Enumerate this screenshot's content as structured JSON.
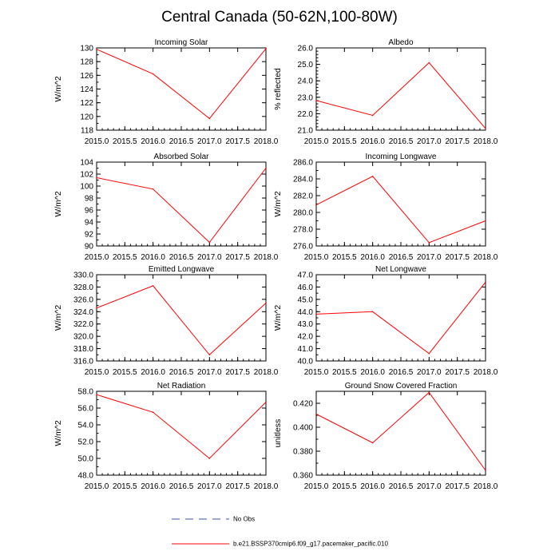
{
  "title": "Central Canada (50-62N,100-80W)",
  "colors": {
    "model": "#ff0000",
    "obs": "#3355aa",
    "axis": "#000000"
  },
  "legend": {
    "obs_label": "No Obs",
    "model_label": "b.e21.BSSP370cmip6.f09_g17.pacemaker_pacific.010"
  },
  "chart_data": [
    {
      "type": "line",
      "title": "Incoming Solar",
      "ylabel": "W/m^2",
      "x": [
        2015,
        2016,
        2017,
        2018
      ],
      "values": [
        129.8,
        126.2,
        119.7,
        129.9
      ],
      "xlim": [
        2015,
        2018
      ],
      "ylim": [
        118,
        130
      ],
      "xticks": [
        "2015.0",
        "2015.5",
        "2016.0",
        "2016.5",
        "2017.0",
        "2017.5",
        "2018.0"
      ],
      "yticks": [
        "118",
        "120",
        "122",
        "124",
        "126",
        "128",
        "130"
      ],
      "yminor": 1
    },
    {
      "type": "line",
      "title": "Albedo",
      "ylabel": "% reflected",
      "x": [
        2015,
        2016,
        2017,
        2018
      ],
      "values": [
        22.8,
        21.9,
        25.1,
        21.1
      ],
      "xlim": [
        2015,
        2018
      ],
      "ylim": [
        21,
        26
      ],
      "xticks": [
        "2015.0",
        "2015.5",
        "2016.0",
        "2016.5",
        "2017.0",
        "2017.5",
        "2018.0"
      ],
      "yticks": [
        "21.0",
        "22.0",
        "23.0",
        "24.0",
        "25.0",
        "26.0"
      ],
      "yminor": 4
    },
    {
      "type": "line",
      "title": "Absorbed Solar",
      "ylabel": "W/m^2",
      "x": [
        2015,
        2016,
        2017,
        2018
      ],
      "values": [
        101.4,
        99.5,
        90.6,
        103.0
      ],
      "xlim": [
        2015,
        2018
      ],
      "ylim": [
        90,
        104
      ],
      "xticks": [
        "2015.0",
        "2015.5",
        "2016.0",
        "2016.5",
        "2017.0",
        "2017.5",
        "2018.0"
      ],
      "yticks": [
        "90",
        "92",
        "94",
        "96",
        "98",
        "100",
        "102",
        "104"
      ],
      "yminor": 1
    },
    {
      "type": "line",
      "title": "Incoming Longwave",
      "ylabel": "W/m^2",
      "x": [
        2015,
        2016,
        2017,
        2018
      ],
      "values": [
        280.9,
        284.3,
        276.4,
        279.0
      ],
      "xlim": [
        2015,
        2018
      ],
      "ylim": [
        276,
        286
      ],
      "xticks": [
        "2015.0",
        "2015.5",
        "2016.0",
        "2016.5",
        "2017.0",
        "2017.5",
        "2018.0"
      ],
      "yticks": [
        "276.0",
        "278.0",
        "280.0",
        "282.0",
        "284.0",
        "286.0"
      ],
      "yminor": 1
    },
    {
      "type": "line",
      "title": "Emitted Longwave",
      "ylabel": "W/m^2",
      "x": [
        2015,
        2016,
        2017,
        2018
      ],
      "values": [
        324.6,
        328.2,
        317.0,
        325.4
      ],
      "xlim": [
        2015,
        2018
      ],
      "ylim": [
        316,
        330
      ],
      "xticks": [
        "2015.0",
        "2015.5",
        "2016.0",
        "2016.5",
        "2017.0",
        "2017.5",
        "2018.0"
      ],
      "yticks": [
        "316.0",
        "318.0",
        "320.0",
        "322.0",
        "324.0",
        "326.0",
        "328.0",
        "330.0"
      ],
      "yminor": 1
    },
    {
      "type": "line",
      "title": "Net Longwave",
      "ylabel": "W/m^2",
      "x": [
        2015,
        2016,
        2017,
        2018
      ],
      "values": [
        43.8,
        44.0,
        40.6,
        46.4
      ],
      "xlim": [
        2015,
        2018
      ],
      "ylim": [
        40,
        47
      ],
      "xticks": [
        "2015.0",
        "2015.5",
        "2016.0",
        "2016.5",
        "2017.0",
        "2017.5",
        "2018.0"
      ],
      "yticks": [
        "40.0",
        "41.0",
        "42.0",
        "43.0",
        "44.0",
        "45.0",
        "46.0",
        "47.0"
      ],
      "yminor": 1
    },
    {
      "type": "line",
      "title": "Net Radiation",
      "ylabel": "W/m^2",
      "x": [
        2015,
        2016,
        2017,
        2018
      ],
      "values": [
        57.6,
        55.5,
        50.0,
        56.7
      ],
      "xlim": [
        2015,
        2018
      ],
      "ylim": [
        48,
        58
      ],
      "xticks": [
        "2015.0",
        "2015.5",
        "2016.0",
        "2016.5",
        "2017.0",
        "2017.5",
        "2018.0"
      ],
      "yticks": [
        "48.0",
        "50.0",
        "52.0",
        "54.0",
        "56.0",
        "58.0"
      ],
      "yminor": 1
    },
    {
      "type": "line",
      "title": "Ground Snow Covered Fraction",
      "ylabel": "unitless",
      "x": [
        2015,
        2016,
        2017,
        2018
      ],
      "values": [
        0.411,
        0.387,
        0.429,
        0.364
      ],
      "xlim": [
        2015,
        2018
      ],
      "ylim": [
        0.36,
        0.43
      ],
      "xticks": [
        "2015.0",
        "2015.5",
        "2016.0",
        "2016.5",
        "2017.0",
        "2017.5",
        "2018.0"
      ],
      "yticks": [
        "0.360",
        "0.380",
        "0.400",
        "0.420"
      ],
      "yminor": 1
    }
  ]
}
